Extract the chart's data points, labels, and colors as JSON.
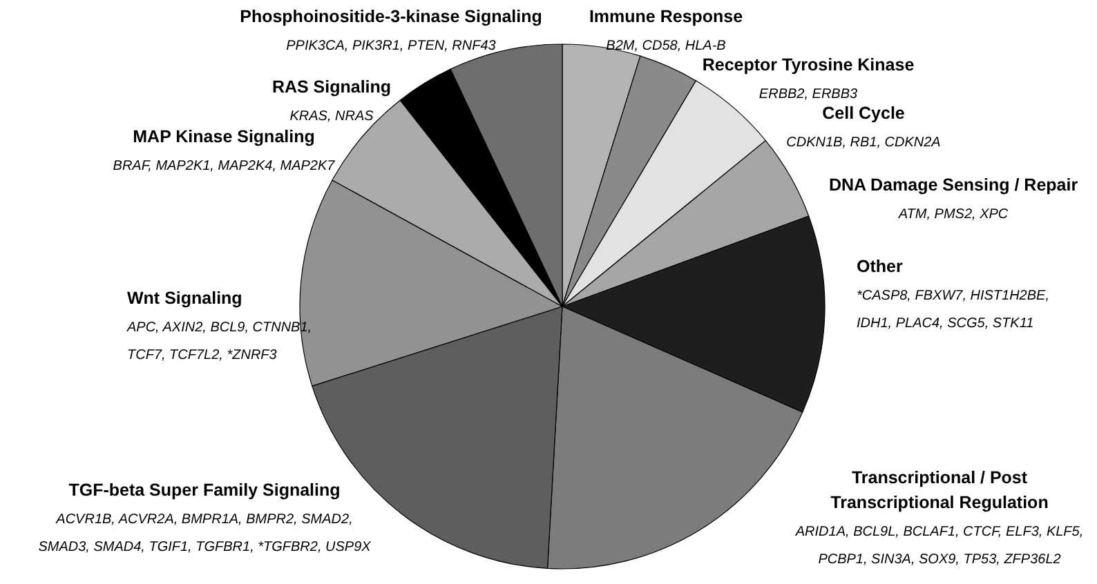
{
  "chart_data": {
    "type": "pie",
    "categories": [
      "Immune Response",
      "Receptor Tyrosine Kinase",
      "Cell Cycle",
      "DNA Damage Sensing / Repair",
      "Other",
      "Transcriptional / Post\nTranscriptional Regulation",
      "TGF-beta Super Family Signaling",
      "Wnt Signaling",
      "MAP Kinase Signaling",
      "RAS Signaling",
      "Phosphoinositide-3-kinase Signaling"
    ],
    "values": [
      4.8,
      3.7,
      5.6,
      5.3,
      12.2,
      19.3,
      19.2,
      12.9,
      6.4,
      3.6,
      7.0
    ],
    "colors": [
      "#b4b4b4",
      "#8a8a8a",
      "#e2e2e2",
      "#a6a6a6",
      "#1e1e1e",
      "#7c7c7c",
      "#5e5e5e",
      "#929292",
      "#ababab",
      "#000000",
      "#6e6e6e"
    ],
    "annotations": [
      "B2M, CD58, HLA-B",
      "ERBB2, ERBB3",
      "CDKN1B, RB1, CDKN2A",
      "ATM, PMS2, XPC",
      "*CASP8, FBXW7, HIST1H2BE,\nIDH1, PLAC4, SCG5, STK11",
      "ARID1A, BCL9L, BCLAF1, CTCF, ELF3, KLF5,\nPCBP1, SIN3A, SOX9, TP53, ZFP36L2",
      "ACVR1B, ACVR2A, BMPR1A, BMPR2, SMAD2,\nSMAD3, SMAD4, TGIF1, TGFBR1, *TGFBR2, USP9X",
      "APC, AXIN2, BCL9, CTNNB1,\nTCF7, TCF7L2, *ZNRF3",
      "BRAF, MAP2K1, MAP2K4, MAP2K7",
      "KRAS, NRAS",
      "PPIK3CA, PIK3R1, PTEN, RNF43"
    ]
  }
}
